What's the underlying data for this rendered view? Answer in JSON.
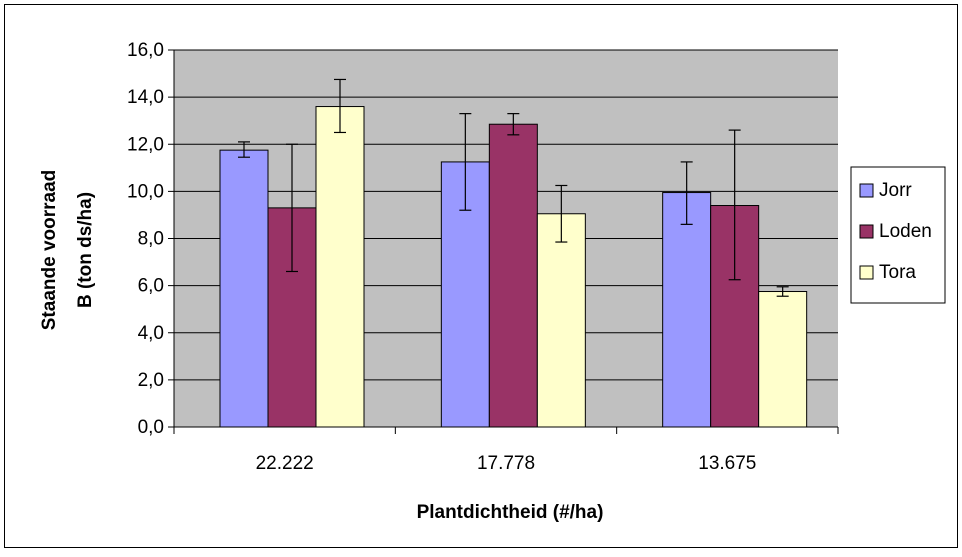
{
  "chart_data": {
    "type": "bar",
    "categories": [
      "22.222",
      "17.778",
      "13.675"
    ],
    "series": [
      {
        "name": "Jorr",
        "color": "#9999ff",
        "values": [
          11.75,
          11.25,
          9.95
        ],
        "err_low": [
          11.45,
          9.2,
          8.6
        ],
        "err_high": [
          12.1,
          13.3,
          11.25
        ]
      },
      {
        "name": "Loden",
        "color": "#993366",
        "values": [
          9.3,
          12.85,
          9.4
        ],
        "err_low": [
          6.6,
          12.4,
          6.25
        ],
        "err_high": [
          12.0,
          13.3,
          12.6
        ]
      },
      {
        "name": "Tora",
        "color": "#ffffcc",
        "values": [
          13.6,
          9.05,
          5.75
        ],
        "err_low": [
          12.5,
          7.85,
          5.55
        ],
        "err_high": [
          14.75,
          10.25,
          5.95
        ]
      }
    ],
    "xlabel": "Plantdichtheid (#/ha)",
    "ylabel_lines": [
      "Staande voorraad",
      "B (ton ds/ha)"
    ],
    "ylim": [
      0,
      16
    ],
    "yticks": [
      0,
      2,
      4,
      6,
      8,
      10,
      12,
      14,
      16
    ],
    "ytick_labels": [
      "0,0",
      "2,0",
      "4,0",
      "6,0",
      "8,0",
      "10,0",
      "12,0",
      "14,0",
      "16,0"
    ],
    "grid": true,
    "legend_position": "right",
    "plot_background": "#c0c0c0"
  }
}
